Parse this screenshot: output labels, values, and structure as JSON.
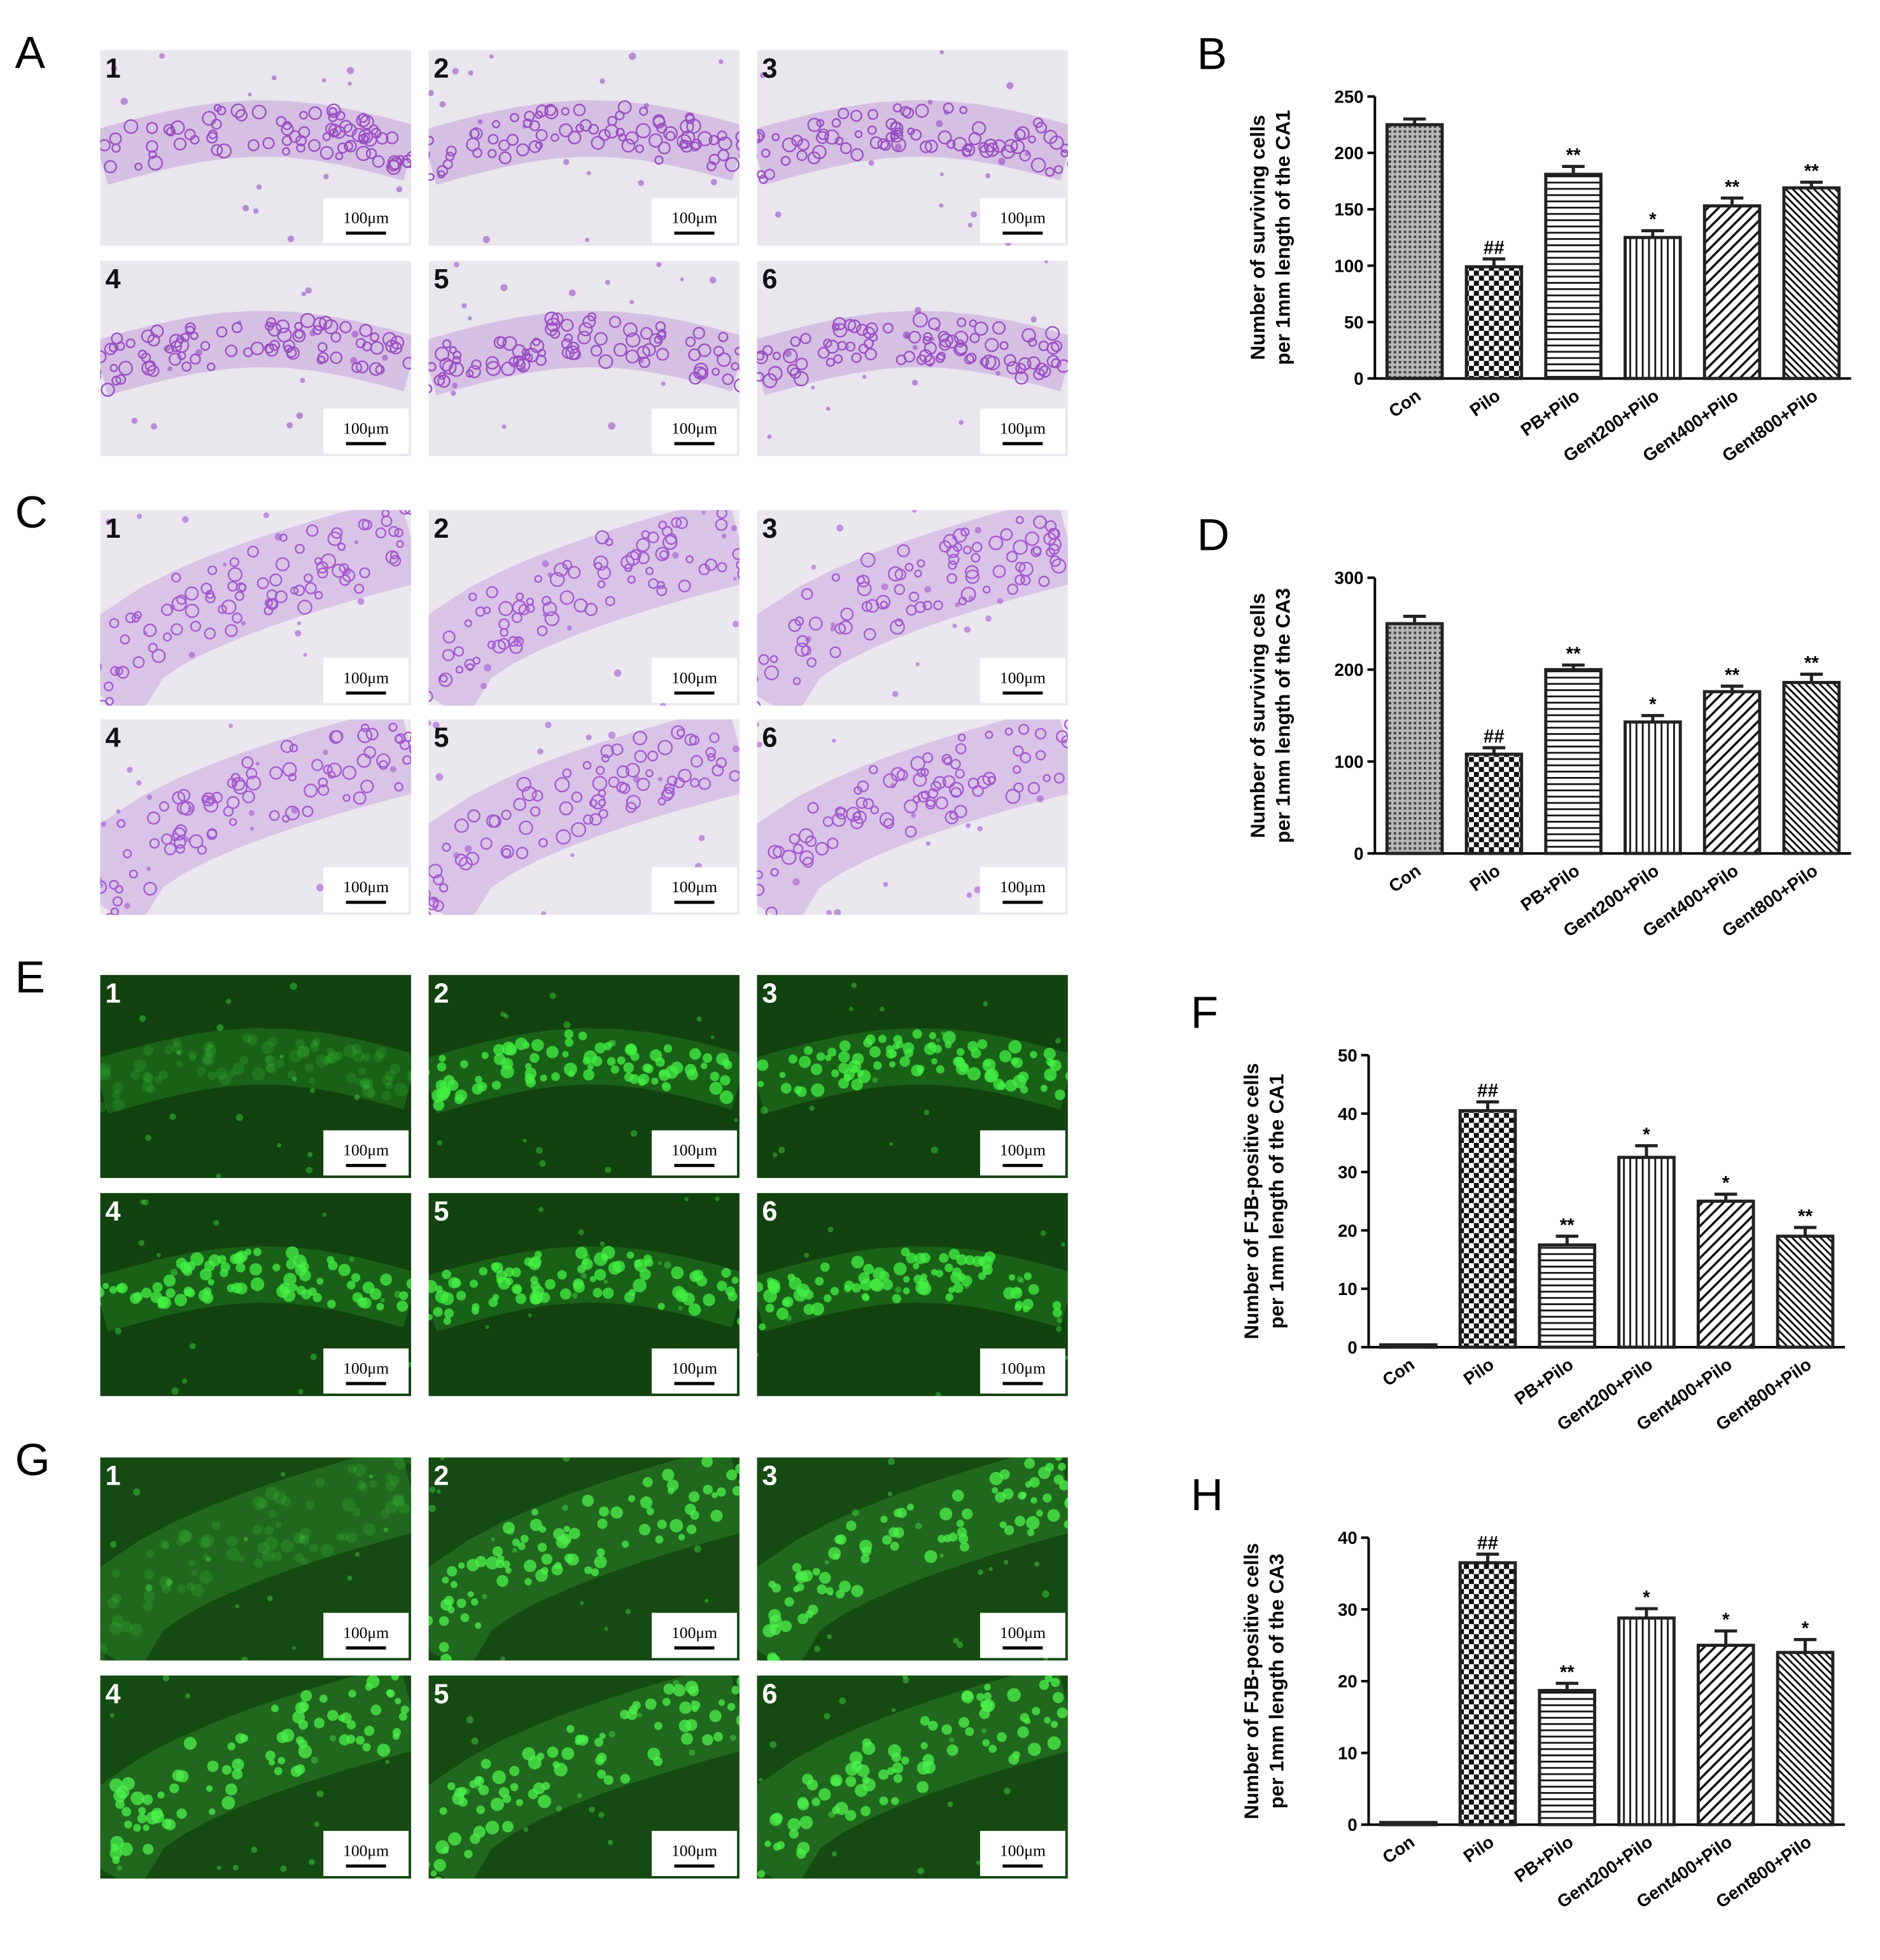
{
  "chart_data": [
    {
      "type": "bar",
      "panel": "B",
      "ylabel": [
        "Number of surviving cells",
        "per 1mm length of the CA1"
      ],
      "categories": [
        "Con",
        "Pilo",
        "PB+Pilo",
        "Gent200+Pilo",
        "Gent400+Pilo",
        "Gent800+Pilo"
      ],
      "values": [
        225,
        99,
        181,
        125,
        153,
        169
      ],
      "errors": [
        5,
        7,
        7,
        6,
        7,
        5
      ],
      "annotations": [
        null,
        "##",
        "**",
        "*",
        "**",
        "**"
      ],
      "patterns": [
        "dots",
        "checker",
        "horizontal",
        "vertical",
        "diagonal",
        "diagonal-dense"
      ],
      "color": "#222222",
      "ylim": [
        0,
        250
      ],
      "yticks": [
        0,
        50,
        100,
        150,
        200,
        250
      ]
    },
    {
      "type": "bar",
      "panel": "D",
      "ylabel": [
        "Number of surviving cells",
        "per 1mm length of the CA3"
      ],
      "categories": [
        "Con",
        "Pilo",
        "PB+Pilo",
        "Gent200+Pilo",
        "Gent400+Pilo",
        "Gent800+Pilo"
      ],
      "values": [
        250,
        108,
        200,
        143,
        176,
        186
      ],
      "errors": [
        8,
        7,
        5,
        7,
        6,
        9
      ],
      "annotations": [
        null,
        "##",
        "**",
        "*",
        "**",
        "**"
      ],
      "patterns": [
        "dots",
        "checker",
        "horizontal",
        "vertical",
        "diagonal",
        "diagonal-dense"
      ],
      "color": "#222222",
      "ylim": [
        0,
        300
      ],
      "yticks": [
        0,
        100,
        200,
        300
      ]
    },
    {
      "type": "bar",
      "panel": "F",
      "ylabel": [
        "Number of FJB-positive cells",
        "per 1mm length of the CA1"
      ],
      "categories": [
        "Con",
        "Pilo",
        "PB+Pilo",
        "Gent200+Pilo",
        "Gent400+Pilo",
        "Gent800+Pilo"
      ],
      "values": [
        0.4,
        40.5,
        17.5,
        32.5,
        25,
        19
      ],
      "errors": [
        0,
        1.5,
        1.5,
        2,
        1.2,
        1.5
      ],
      "annotations": [
        null,
        "##",
        "**",
        "*",
        "*",
        "**"
      ],
      "patterns": [
        "dots",
        "checker",
        "horizontal",
        "vertical",
        "diagonal",
        "diagonal-dense"
      ],
      "color": "#222222",
      "ylim": [
        0,
        50
      ],
      "yticks": [
        0,
        10,
        20,
        30,
        40,
        50
      ]
    },
    {
      "type": "bar",
      "panel": "H",
      "ylabel": [
        "Number of FJB-positive cells",
        "per 1mm length of the CA3"
      ],
      "categories": [
        "Con",
        "Pilo",
        "PB+Pilo",
        "Gent200+Pilo",
        "Gent400+Pilo",
        "Gent800+Pilo"
      ],
      "values": [
        0.3,
        36.5,
        18.7,
        28.8,
        25,
        24
      ],
      "errors": [
        0,
        1.2,
        1,
        1.3,
        2,
        1.8
      ],
      "annotations": [
        null,
        "##",
        "**",
        "*",
        "*",
        "*"
      ],
      "patterns": [
        "dots",
        "checker",
        "horizontal",
        "vertical",
        "diagonal",
        "diagonal-dense"
      ],
      "color": "#222222",
      "ylim": [
        0,
        40
      ],
      "yticks": [
        0,
        10,
        20,
        30,
        40
      ]
    }
  ],
  "image_panels": [
    {
      "label": "A",
      "color": "#9b4fc4",
      "background": "#e9e6ee",
      "images": [
        {
          "number": "1",
          "scale_bar": "100μm"
        },
        {
          "number": "2",
          "scale_bar": "100μm"
        },
        {
          "number": "3",
          "scale_bar": "100μm"
        },
        {
          "number": "4",
          "scale_bar": "100μm"
        },
        {
          "number": "5",
          "scale_bar": "100μm"
        },
        {
          "number": "6",
          "scale_bar": "100μm"
        }
      ]
    },
    {
      "label": "C",
      "color": "#a45ad0",
      "background": "#ebe7ef",
      "images": [
        {
          "number": "1",
          "scale_bar": "100μm"
        },
        {
          "number": "2",
          "scale_bar": "100μm"
        },
        {
          "number": "3",
          "scale_bar": "100μm"
        },
        {
          "number": "4",
          "scale_bar": "100μm"
        },
        {
          "number": "5",
          "scale_bar": "100μm"
        },
        {
          "number": "6",
          "scale_bar": "100μm"
        }
      ]
    },
    {
      "label": "E",
      "color": "#44f044",
      "background": "#12420f",
      "images": [
        {
          "number": "1",
          "scale_bar": "100μm"
        },
        {
          "number": "2",
          "scale_bar": "100μm"
        },
        {
          "number": "3",
          "scale_bar": "100μm"
        },
        {
          "number": "4",
          "scale_bar": "100μm"
        },
        {
          "number": "5",
          "scale_bar": "100μm"
        },
        {
          "number": "6",
          "scale_bar": "100μm"
        }
      ]
    },
    {
      "label": "G",
      "color": "#4cf24c",
      "background": "#164a13",
      "images": [
        {
          "number": "1",
          "scale_bar": "100μm"
        },
        {
          "number": "2",
          "scale_bar": "100μm"
        },
        {
          "number": "3",
          "scale_bar": "100μm"
        },
        {
          "number": "4",
          "scale_bar": "100μm"
        },
        {
          "number": "5",
          "scale_bar": "100μm"
        },
        {
          "number": "6",
          "scale_bar": "100μm"
        }
      ]
    }
  ]
}
